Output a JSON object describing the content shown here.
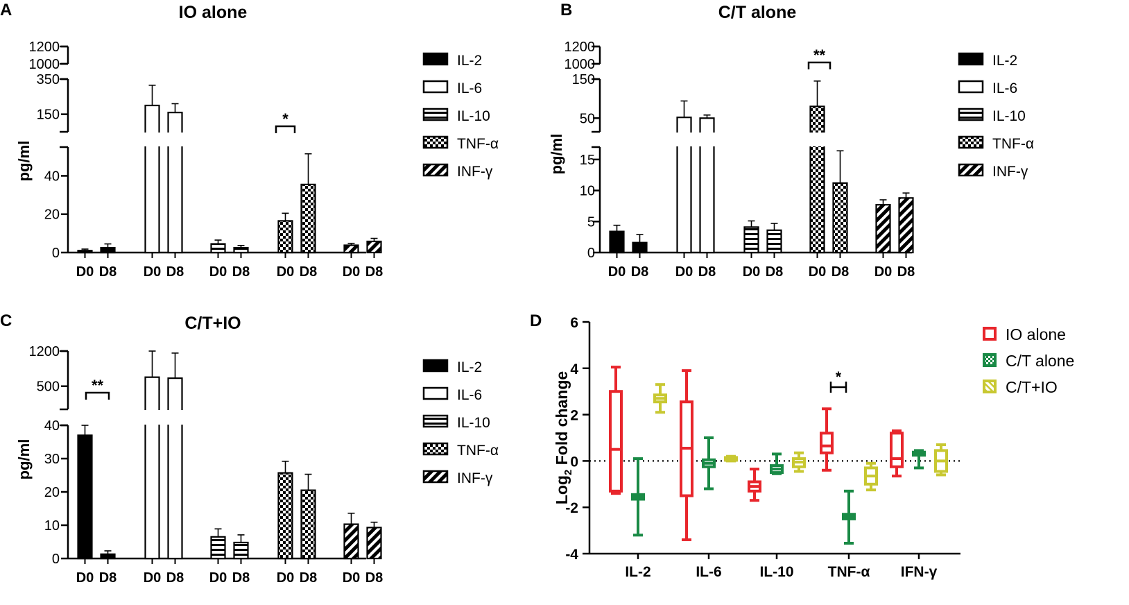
{
  "chart_data": [
    {
      "id": "A",
      "type": "bar",
      "panel_letter": "A",
      "title": "IO alone",
      "ylabel": "pg/ml",
      "categories": [
        "IL-2",
        "IL-6",
        "IL-10",
        "TNF-α",
        "INF-γ"
      ],
      "groups": [
        "D0",
        "D8"
      ],
      "series": [
        {
          "name": "D0",
          "values": [
            1.0,
            200,
            4.5,
            16.5,
            3.8
          ],
          "errors": [
            0.8,
            115,
            2.0,
            4.0,
            1.0
          ]
        },
        {
          "name": "D8",
          "values": [
            2.5,
            160,
            2.5,
            35.5,
            5.8
          ],
          "errors": [
            2.0,
            50,
            1.2,
            16.0,
            1.6
          ]
        }
      ],
      "y_segments": [
        {
          "range": [
            0,
            55
          ],
          "ticks": [
            0,
            20,
            40
          ]
        },
        {
          "range": [
            50,
            350
          ],
          "ticks": [
            150,
            350
          ]
        },
        {
          "range": [
            1000,
            1200
          ],
          "ticks": [
            1000,
            1200
          ]
        }
      ],
      "annotations": [
        {
          "category": "TNF-α",
          "text": "*"
        }
      ],
      "legend": [
        "IL-2",
        "IL-6",
        "IL-10",
        "TNF-α",
        "INF-γ"
      ]
    },
    {
      "id": "B",
      "type": "bar",
      "panel_letter": "B",
      "title": "C/T alone",
      "ylabel": "pg/ml",
      "categories": [
        "IL-2",
        "IL-6",
        "IL-10",
        "TNF-α",
        "INF-γ"
      ],
      "groups": [
        "D0",
        "D8"
      ],
      "series": [
        {
          "name": "D0",
          "values": [
            3.4,
            52,
            4.1,
            80,
            7.7
          ],
          "errors": [
            1.0,
            42,
            1.0,
            65,
            0.8
          ]
        },
        {
          "name": "D8",
          "values": [
            1.6,
            50,
            3.6,
            11.2,
            8.8
          ],
          "errors": [
            1.3,
            8,
            1.1,
            5.2,
            0.8
          ]
        }
      ],
      "y_segments": [
        {
          "range": [
            0,
            17
          ],
          "ticks": [
            0,
            5,
            10,
            15
          ]
        },
        {
          "range": [
            15,
            150
          ],
          "ticks": [
            50,
            150
          ]
        },
        {
          "range": [
            1000,
            1200
          ],
          "ticks": [
            1000,
            1200
          ]
        }
      ],
      "annotations": [
        {
          "category": "TNF-α",
          "text": "**"
        }
      ],
      "legend": [
        "IL-2",
        "IL-6",
        "IL-10",
        "TNF-α",
        "INF-γ"
      ]
    },
    {
      "id": "C",
      "type": "bar",
      "panel_letter": "C",
      "title": "C/T+IO",
      "ylabel": "pg/ml",
      "categories": [
        "IL-2",
        "IL-6",
        "IL-10",
        "TNF-α",
        "INF-γ"
      ],
      "groups": [
        "D0",
        "D8"
      ],
      "series": [
        {
          "name": "D0",
          "values": [
            37,
            680,
            6.5,
            25.7,
            10.3
          ],
          "errors": [
            3,
            520,
            2.4,
            3.5,
            3.3
          ]
        },
        {
          "name": "D8",
          "values": [
            1.3,
            660,
            4.8,
            20.5,
            9.3
          ],
          "errors": [
            1.0,
            500,
            2.3,
            4.8,
            1.6
          ]
        }
      ],
      "y_segments": [
        {
          "range": [
            0,
            40
          ],
          "ticks": [
            0,
            10,
            20,
            30,
            40
          ]
        },
        {
          "range": [
            40,
            1200
          ],
          "ticks": [
            500,
            1200
          ]
        }
      ],
      "annotations": [
        {
          "category": "IL-2",
          "text": "**"
        }
      ],
      "legend": [
        "IL-2",
        "IL-6",
        "IL-10",
        "TNF-α",
        "INF-γ"
      ]
    },
    {
      "id": "D",
      "type": "box",
      "panel_letter": "D",
      "ylabel": "Log",
      "ylabel_sub": "2",
      "ylabel_rest": " Fold change",
      "categories": [
        "IL-2",
        "IL-6",
        "IL-10",
        "TNF-α",
        "IFN-γ"
      ],
      "ylim": [
        -4,
        6
      ],
      "yticks": [
        -4,
        -2,
        0,
        2,
        4,
        6
      ],
      "series": [
        {
          "name": "IO alone",
          "color": "#e8262c",
          "boxes": [
            {
              "min": -1.4,
              "q1": -1.3,
              "med": 0.5,
              "q3": 3.0,
              "max": 4.05
            },
            {
              "min": -3.4,
              "q1": -1.5,
              "med": 0.55,
              "q3": 2.55,
              "max": 3.9
            },
            {
              "min": -1.7,
              "q1": -1.3,
              "med": -1.1,
              "q3": -0.9,
              "max": -0.35
            },
            {
              "min": -0.4,
              "q1": 0.35,
              "med": 0.65,
              "q3": 1.2,
              "max": 2.25
            },
            {
              "min": -0.65,
              "q1": -0.25,
              "med": 0.1,
              "q3": 1.2,
              "max": 1.3
            }
          ]
        },
        {
          "name": "C/T alone",
          "color": "#1a8a46",
          "boxes": [
            {
              "min": -3.2,
              "q1": -1.65,
              "med": -1.55,
              "q3": -1.45,
              "max": 0.1
            },
            {
              "min": -1.2,
              "q1": -0.25,
              "med": -0.1,
              "q3": 0.05,
              "max": 1.0
            },
            {
              "min": -0.55,
              "q1": -0.5,
              "med": -0.35,
              "q3": -0.2,
              "max": 0.3
            },
            {
              "min": -3.55,
              "q1": -2.5,
              "med": -2.4,
              "q3": -2.3,
              "max": -1.3
            },
            {
              "min": -0.3,
              "q1": 0.25,
              "med": 0.32,
              "q3": 0.38,
              "max": 0.45
            }
          ]
        },
        {
          "name": "C/T+IO",
          "color": "#c8c832",
          "boxes": [
            {
              "min": 2.1,
              "q1": 2.55,
              "med": 2.7,
              "q3": 2.85,
              "max": 3.3
            },
            {
              "min": 0.0,
              "q1": 0.03,
              "med": 0.1,
              "q3": 0.15,
              "max": 0.2
            },
            {
              "min": -0.45,
              "q1": -0.25,
              "med": -0.05,
              "q3": 0.1,
              "max": 0.35
            },
            {
              "min": -1.25,
              "q1": -1.0,
              "med": -0.65,
              "q3": -0.3,
              "max": -0.1
            },
            {
              "min": -0.6,
              "q1": -0.45,
              "med": 0.0,
              "q3": 0.45,
              "max": 0.7
            }
          ]
        }
      ],
      "reference_line": 0,
      "annotations": [
        {
          "category": "TNF-α",
          "text": "*"
        }
      ],
      "legend": [
        "IO alone",
        "C/T alone",
        "C/T+IO"
      ]
    }
  ]
}
